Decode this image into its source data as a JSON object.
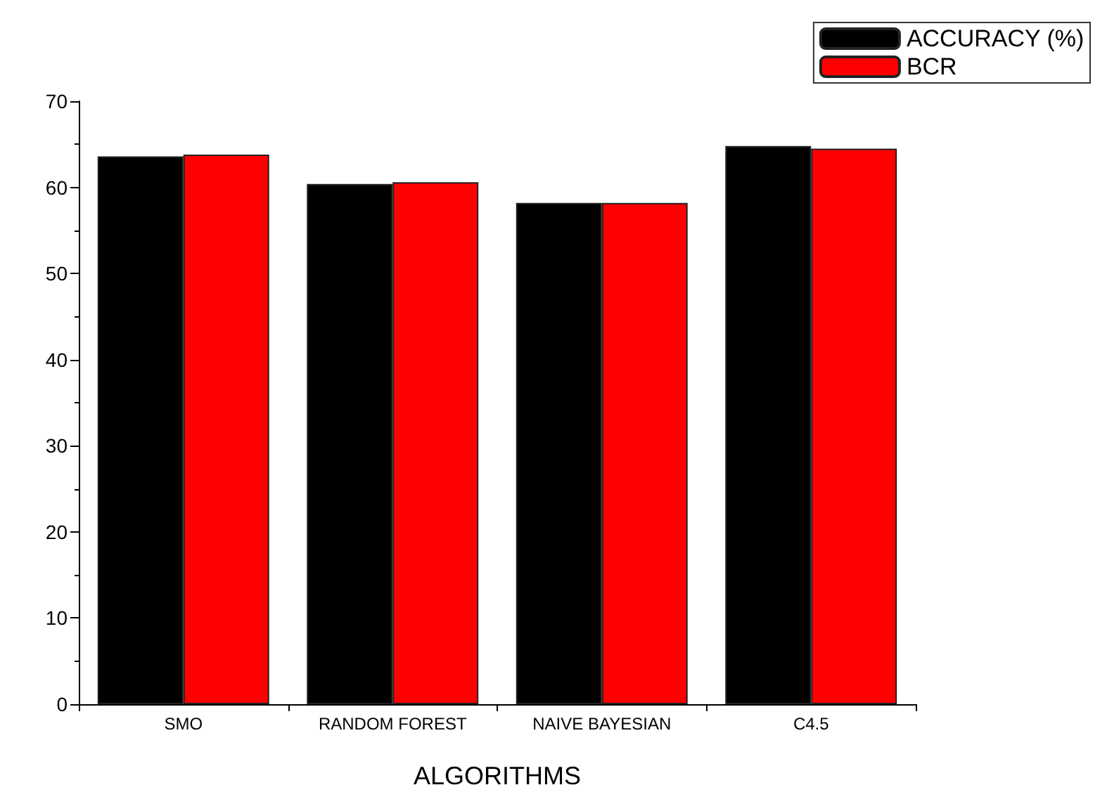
{
  "chart_data": {
    "type": "bar",
    "xlabel": "ALGORITHMS",
    "categories": [
      "SMO",
      "RANDOM FOREST",
      "NAIVE BAYESIAN",
      "C4.5"
    ],
    "series": [
      {
        "name": "ACCURACY (%)",
        "color": "#000000",
        "values": [
          63.6,
          60.4,
          58.2,
          64.8
        ]
      },
      {
        "name": "BCR",
        "color": "#ff0000",
        "values": [
          63.8,
          60.6,
          58.2,
          64.5
        ]
      }
    ],
    "ylim": [
      0,
      70
    ],
    "yticks": [
      0,
      10,
      20,
      30,
      40,
      50,
      60,
      70
    ],
    "grid": false,
    "legend": "top right"
  }
}
